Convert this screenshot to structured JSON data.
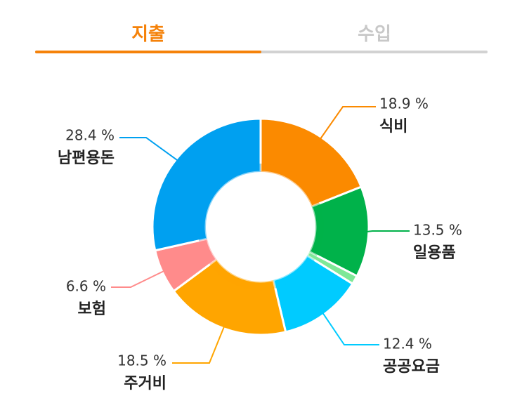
{
  "tabs": [
    {
      "label": "지출",
      "active": true
    },
    {
      "label": "수입",
      "active": false
    }
  ],
  "colors": {
    "active_tab": "#f5820a",
    "inactive_tab": "#c8c8c8",
    "track": "#d2d2d2"
  },
  "chart_data": {
    "type": "pie",
    "variant": "donut",
    "start": "12 o'clock, clockwise",
    "slices": [
      {
        "label": "식비",
        "value": 18.9,
        "pct_text": "18.9 %",
        "color": "#fb8a00",
        "show_label": true
      },
      {
        "label": "일용품",
        "value": 13.5,
        "pct_text": "13.5 %",
        "color": "#00b24a",
        "show_label": true
      },
      {
        "label": "",
        "value": 1.3,
        "pct_text": "",
        "color": "#7ee897",
        "show_label": false
      },
      {
        "label": "공공요금",
        "value": 12.4,
        "pct_text": "12.4 %",
        "color": "#00cbff",
        "show_label": true
      },
      {
        "label": "주거비",
        "value": 18.5,
        "pct_text": "18.5 %",
        "color": "#ffa500",
        "show_label": true
      },
      {
        "label": "보험",
        "value": 6.6,
        "pct_text": "6.6 %",
        "color": "#ff8b8b",
        "show_label": true
      },
      {
        "label": "남편용돈",
        "value": 28.4,
        "pct_text": "28.4 %",
        "color": "#00a0f0",
        "show_label": true
      }
    ]
  }
}
